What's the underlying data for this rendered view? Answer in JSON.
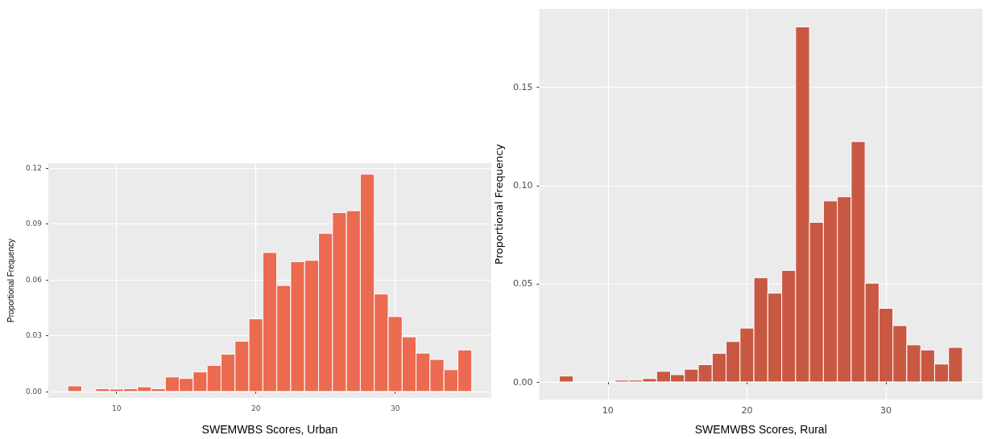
{
  "chart_data": [
    {
      "type": "histogram",
      "xlabel": "SWEMWBS Scores, Urban",
      "ylabel": "Proportional Frequency",
      "color": "#ec6a50",
      "bins": [
        6.5,
        7.5,
        8.5,
        9.5,
        10.5,
        11.5,
        12.5,
        13.5,
        14.5,
        15.5,
        16.5,
        17.5,
        18.5,
        19.5,
        20.5,
        21.5,
        22.5,
        23.5,
        24.5,
        25.5,
        26.5,
        27.5,
        28.5,
        29.5,
        30.5,
        31.5,
        32.5,
        33.5,
        34.5,
        35.5
      ],
      "values": [
        0.003,
        0.0005,
        0.0015,
        0.0013,
        0.0015,
        0.0025,
        0.0015,
        0.0078,
        0.007,
        0.0105,
        0.014,
        0.02,
        0.027,
        0.039,
        0.0746,
        0.0569,
        0.0697,
        0.0704,
        0.0849,
        0.096,
        0.097,
        0.1166,
        0.0523,
        0.0402,
        0.0293,
        0.0206,
        0.0172,
        0.0117,
        0.0223
      ],
      "xlim": [
        5.1,
        36.9
      ],
      "ylim": [
        -0.0035,
        0.1225
      ],
      "xticks": [
        10,
        20,
        30
      ],
      "yticks": [
        {
          "value": 0,
          "label": "0.00"
        },
        {
          "value": 0.03,
          "label": "0.03"
        },
        {
          "value": 0.06,
          "label": "0.06"
        },
        {
          "value": 0.09,
          "label": "0.09"
        },
        {
          "value": 0.12,
          "label": "0.12"
        }
      ],
      "grid": true
    },
    {
      "type": "histogram",
      "xlabel": "SWEMWBS Scores, Rural",
      "ylabel": "Proportional Frequency",
      "color": "#c95842",
      "bins": [
        6.5,
        7.5,
        8.5,
        9.5,
        10.5,
        11.5,
        12.5,
        13.5,
        14.5,
        15.5,
        16.5,
        17.5,
        18.5,
        19.5,
        20.5,
        21.5,
        22.5,
        23.5,
        24.5,
        25.5,
        26.5,
        27.5,
        28.5,
        29.5,
        30.5,
        31.5,
        32.5,
        33.5,
        34.5,
        35.5
      ],
      "values": [
        0.003,
        0.0003,
        0.0003,
        0.0003,
        0.0009,
        0.0009,
        0.0017,
        0.0054,
        0.0037,
        0.0065,
        0.0088,
        0.0146,
        0.0206,
        0.0274,
        0.0531,
        0.0452,
        0.0568,
        0.1808,
        0.0813,
        0.0922,
        0.0943,
        0.1224,
        0.0503,
        0.0375,
        0.0287,
        0.0189,
        0.0163,
        0.0091,
        0.0176
      ],
      "xlim": [
        5.05,
        36.95
      ],
      "ylim": [
        -0.009,
        0.19
      ],
      "xticks": [
        10,
        20,
        30
      ],
      "yticks": [
        {
          "value": 0,
          "label": "0.00"
        },
        {
          "value": 0.05,
          "label": "0.05"
        },
        {
          "value": 0.1,
          "label": "0.10"
        },
        {
          "value": 0.15,
          "label": "0.15"
        }
      ],
      "grid": true
    }
  ]
}
